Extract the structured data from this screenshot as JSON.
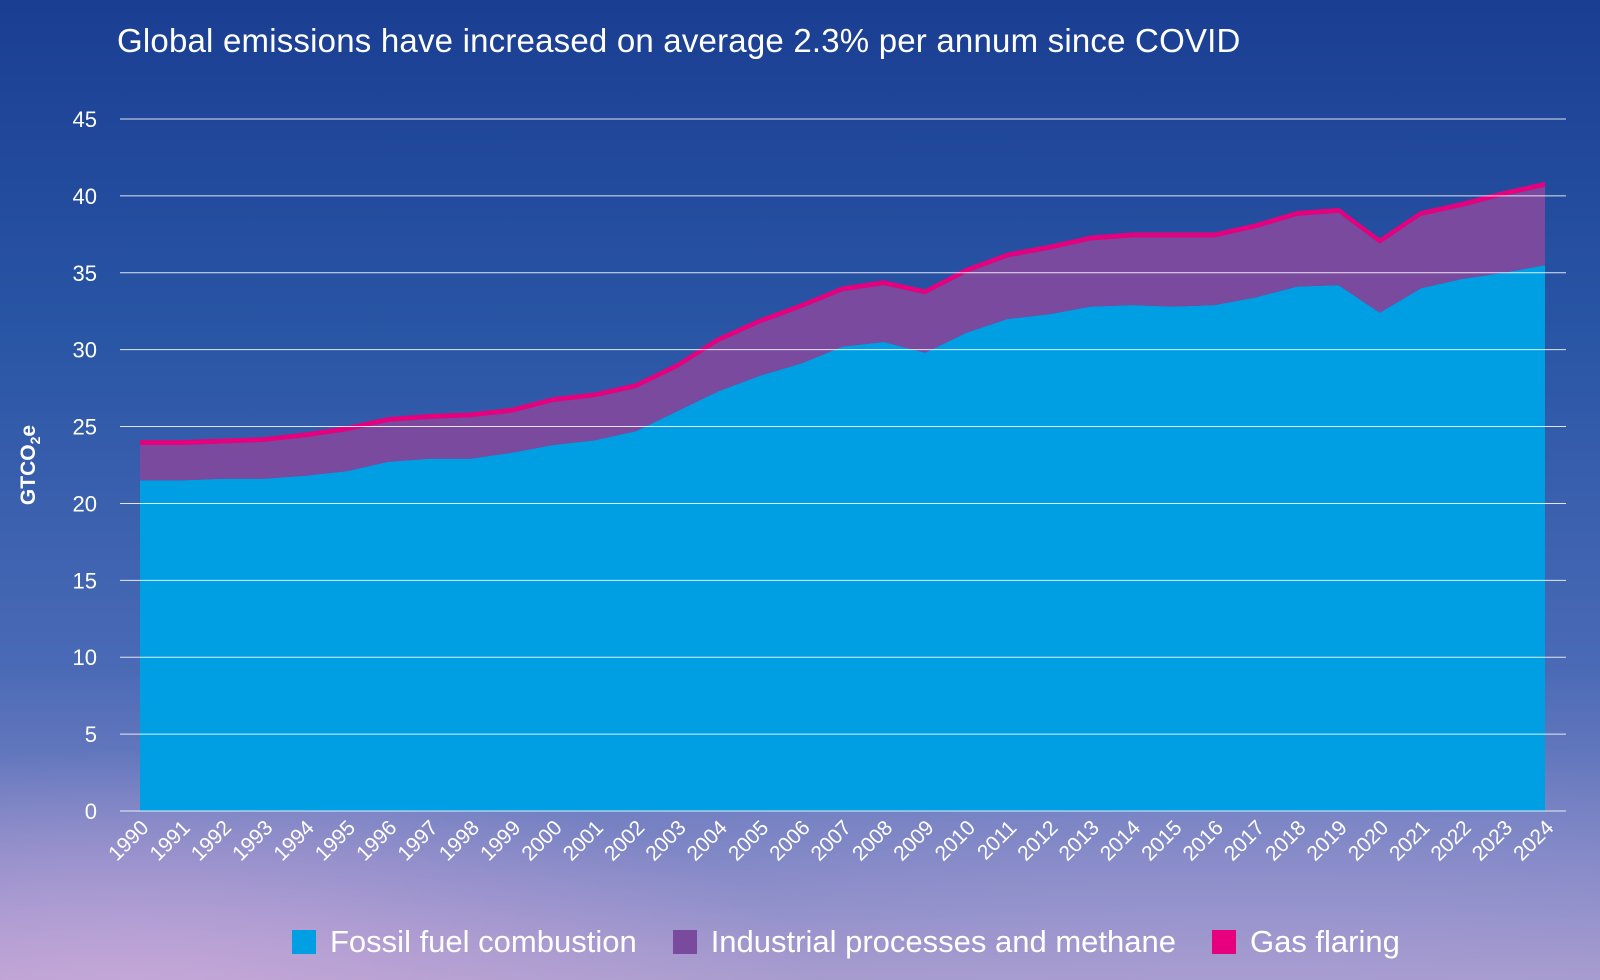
{
  "chart_data": {
    "type": "area",
    "stacked": true,
    "title": "Global emissions have increased on average 2.3% per annum since COVID",
    "ylabel": "GTCO2e",
    "ylabel_main": "GTCO",
    "ylabel_sub": "2",
    "ylabel_tail": "e",
    "xlabel": "",
    "ylim": [
      0,
      45
    ],
    "yticks": [
      0,
      5,
      10,
      15,
      20,
      25,
      30,
      35,
      40,
      45
    ],
    "grid": true,
    "legend_position": "bottom",
    "x": [
      "1990",
      "1991",
      "1992",
      "1993",
      "1994",
      "1995",
      "1996",
      "1997",
      "1998",
      "1999",
      "2000",
      "2001",
      "2002",
      "2003",
      "2004",
      "2005",
      "2006",
      "2007",
      "2008",
      "2009",
      "2010",
      "2011",
      "2012",
      "2013",
      "2014",
      "2015",
      "2016",
      "2017",
      "2018",
      "2019",
      "2020",
      "2021",
      "2022",
      "2023",
      "2024"
    ],
    "series": [
      {
        "name": "Fossil fuel combustion",
        "color": "#009fe3",
        "values": [
          21.5,
          21.5,
          21.6,
          21.6,
          21.8,
          22.1,
          22.7,
          22.9,
          22.9,
          23.3,
          23.8,
          24.1,
          24.7,
          26.0,
          27.3,
          28.3,
          29.1,
          30.2,
          30.5,
          29.8,
          31.1,
          32.0,
          32.3,
          32.8,
          32.9,
          32.8,
          32.9,
          33.4,
          34.1,
          34.2,
          32.4,
          34.0,
          34.6,
          35.0,
          35.5
        ]
      },
      {
        "name": "Industrial processes and methane",
        "color": "#7a4a9e",
        "values": [
          2.3,
          2.3,
          2.3,
          2.4,
          2.5,
          2.6,
          2.6,
          2.6,
          2.7,
          2.6,
          2.8,
          2.8,
          2.8,
          2.8,
          3.2,
          3.4,
          3.6,
          3.6,
          3.7,
          3.8,
          3.9,
          4.0,
          4.2,
          4.3,
          4.4,
          4.5,
          4.4,
          4.5,
          4.6,
          4.7,
          4.5,
          4.7,
          4.7,
          5.0,
          5.1
        ]
      },
      {
        "name": "Gas flaring",
        "color": "#e6007e",
        "values": [
          0.2,
          0.2,
          0.2,
          0.2,
          0.2,
          0.2,
          0.2,
          0.2,
          0.2,
          0.2,
          0.2,
          0.2,
          0.2,
          0.2,
          0.2,
          0.2,
          0.2,
          0.2,
          0.2,
          0.2,
          0.2,
          0.2,
          0.2,
          0.2,
          0.2,
          0.2,
          0.2,
          0.2,
          0.2,
          0.2,
          0.2,
          0.2,
          0.2,
          0.2,
          0.2
        ]
      }
    ]
  }
}
